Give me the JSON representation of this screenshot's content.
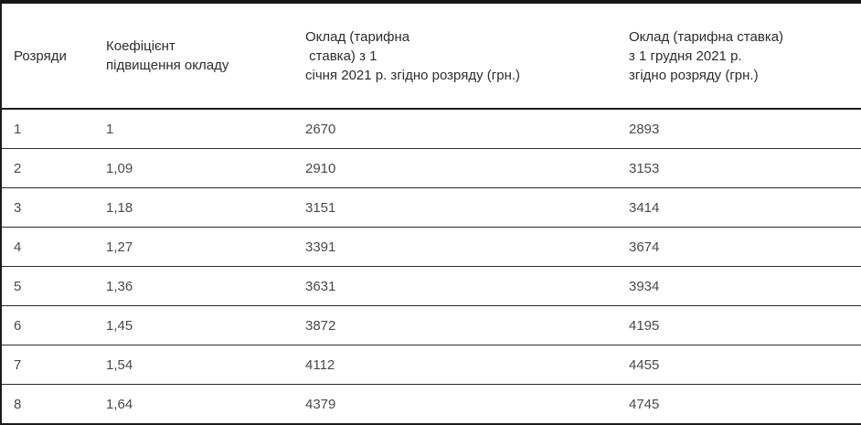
{
  "table": {
    "columns": [
      {
        "key": "grade",
        "label": "Розряди"
      },
      {
        "key": "coefficient",
        "label": "Коефіцієнт\nпідвищення окладу"
      },
      {
        "key": "salary_jan",
        "label": "Оклад (тарифна\n ставка) з 1\nсічня 2021 р. згідно розряду (грн.)"
      },
      {
        "key": "salary_dec",
        "label": "Оклад (тарифна ставка)\nз 1 грудня 2021 р.\nзгідно розряду (грн.)"
      }
    ],
    "rows": [
      {
        "grade": "1",
        "coefficient": "1",
        "salary_jan": "2670",
        "salary_dec": "2893"
      },
      {
        "grade": "2",
        "coefficient": "1,09",
        "salary_jan": "2910",
        "salary_dec": "3153"
      },
      {
        "grade": "3",
        "coefficient": "1,18",
        "salary_jan": "3151",
        "salary_dec": "3414"
      },
      {
        "grade": "4",
        "coefficient": "1,27",
        "salary_jan": "3391",
        "salary_dec": "3674"
      },
      {
        "grade": "5",
        "coefficient": "1,36",
        "salary_jan": "3631",
        "salary_dec": "3934"
      },
      {
        "grade": "6",
        "coefficient": "1,45",
        "salary_jan": "3872",
        "salary_dec": "4195"
      },
      {
        "grade": "7",
        "coefficient": "1,54",
        "salary_jan": "4112",
        "salary_dec": "4455"
      },
      {
        "grade": "8",
        "coefficient": "1,64",
        "salary_jan": "4379",
        "salary_dec": "4745"
      }
    ]
  },
  "colors": {
    "border_strong": "#161616",
    "border_rule": "#2b2b2b",
    "header_text": "#2d2d2d",
    "body_text": "#494949",
    "background": "#ffffff"
  }
}
